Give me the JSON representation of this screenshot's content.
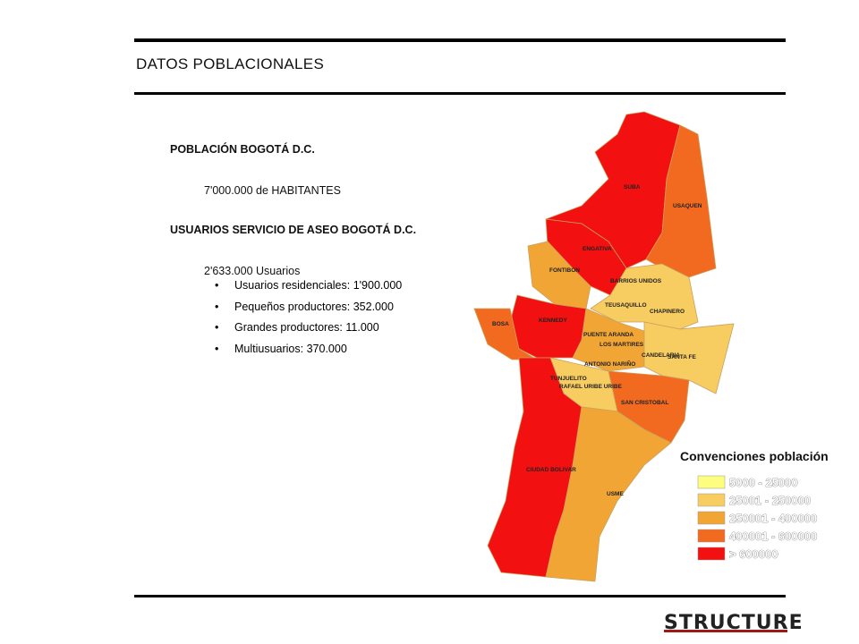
{
  "header": {
    "title": "DATOS POBLACIONALES"
  },
  "content": {
    "heading1": "POBLACIÓN BOGOTÁ D.C.",
    "population": "7'000.000 de HABITANTES",
    "heading2": "USUARIOS SERVICIO DE ASEO BOGOTÁ D.C.",
    "users": "2'633.000 Usuarios",
    "bullets": [
      "Usuarios residenciales: 1'900.000",
      "Pequeños productores: 352.000",
      "Grandes productores: 11.000",
      "Multiusuarios: 370.000"
    ]
  },
  "map": {
    "districts": [
      {
        "label": "SUBA"
      },
      {
        "label": "USAQUEN"
      },
      {
        "label": "ENGATIVA"
      },
      {
        "label": "FONTIBON"
      },
      {
        "label": "BARRIOS UNIDOS"
      },
      {
        "label": "TEUSAQUILLO"
      },
      {
        "label": "CHAPINERO"
      },
      {
        "label": "KENNEDY"
      },
      {
        "label": "BOSA"
      },
      {
        "label": "PUENTE ARANDA"
      },
      {
        "label": "LOS MARTIRES"
      },
      {
        "label": "CANDELARIA"
      },
      {
        "label": "SANTA FE"
      },
      {
        "label": "ANTONIO NARIÑO"
      },
      {
        "label": "TUNJUELITO"
      },
      {
        "label": "RAFAEL URIBE URIBE"
      },
      {
        "label": "SAN CRISTOBAL"
      },
      {
        "label": "CIUDAD BOLIVAR"
      },
      {
        "label": "USME"
      }
    ]
  },
  "legend": {
    "title": "Convenciones población",
    "items": [
      "5000 - 25000",
      "25001 - 250000",
      "250001 - 400000",
      "400001 - 600000",
      "> 600000"
    ]
  },
  "footer": {
    "logo": "STRUCTURE"
  }
}
